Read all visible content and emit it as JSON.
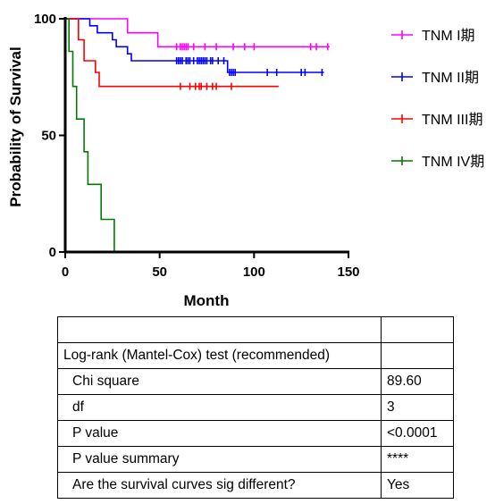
{
  "chart_data": {
    "type": "line",
    "step": true,
    "xlabel": "Month",
    "ylabel": "Probability of Survival",
    "xlim": [
      0,
      150
    ],
    "ylim": [
      0,
      100
    ],
    "x_ticks": [
      "0",
      "50",
      "100",
      "150"
    ],
    "y_ticks": [
      "0",
      "50",
      "100"
    ],
    "legend_position": "right",
    "series": [
      {
        "name": "TNM I期",
        "color": "#ff00ff",
        "steps": [
          [
            0,
            100
          ],
          [
            33,
            100
          ],
          [
            33,
            94
          ],
          [
            49,
            94
          ],
          [
            49,
            88
          ],
          [
            140,
            88
          ]
        ],
        "censored": [
          59,
          61,
          62,
          63,
          64,
          65,
          68,
          74,
          80,
          89,
          95,
          100,
          130,
          133,
          139
        ]
      },
      {
        "name": "TNM II期",
        "color": "#0000ff",
        "steps": [
          [
            0,
            100
          ],
          [
            13,
            100
          ],
          [
            13,
            97
          ],
          [
            17,
            97
          ],
          [
            17,
            94
          ],
          [
            25,
            94
          ],
          [
            25,
            91
          ],
          [
            27,
            91
          ],
          [
            27,
            88
          ],
          [
            33,
            88
          ],
          [
            33,
            85
          ],
          [
            35,
            85
          ],
          [
            35,
            82
          ],
          [
            86,
            82
          ],
          [
            86,
            77
          ],
          [
            137,
            77
          ]
        ],
        "censored": [
          59,
          60,
          61,
          62,
          64,
          65,
          66,
          68,
          70,
          71,
          72,
          73,
          74,
          75,
          77,
          78,
          81,
          84,
          87,
          88,
          89,
          90,
          107,
          112,
          125,
          127,
          136
        ]
      },
      {
        "name": "TNM III期",
        "color": "#ff0000",
        "steps": [
          [
            0,
            100
          ],
          [
            7,
            100
          ],
          [
            7,
            91
          ],
          [
            10,
            91
          ],
          [
            10,
            82
          ],
          [
            16,
            82
          ],
          [
            16,
            77
          ],
          [
            18,
            77
          ],
          [
            18,
            71
          ],
          [
            113,
            71
          ]
        ],
        "censored": [
          61,
          66,
          69,
          71,
          72,
          75,
          78,
          80,
          88
        ]
      },
      {
        "name": "TNM IV期",
        "color": "#007a00",
        "steps": [
          [
            0,
            100
          ],
          [
            2,
            100
          ],
          [
            2,
            86
          ],
          [
            4,
            86
          ],
          [
            4,
            71
          ],
          [
            6,
            71
          ],
          [
            6,
            57
          ],
          [
            10,
            57
          ],
          [
            10,
            43
          ],
          [
            12,
            43
          ],
          [
            12,
            29
          ],
          [
            19,
            29
          ],
          [
            19,
            14
          ],
          [
            26,
            14
          ],
          [
            26,
            0
          ]
        ],
        "censored": []
      }
    ]
  },
  "table": {
    "rows": [
      {
        "label": "",
        "value": ""
      },
      {
        "label": "Log-rank (Mantel-Cox) test (recommended)",
        "value": ""
      },
      {
        "label": "Chi square",
        "value": "89.60"
      },
      {
        "label": "df",
        "value": "3"
      },
      {
        "label": "P value",
        "value": "<0.0001"
      },
      {
        "label": "P value summary",
        "value": "****"
      },
      {
        "label": "Are the survival curves sig different?",
        "value": "Yes"
      }
    ]
  }
}
